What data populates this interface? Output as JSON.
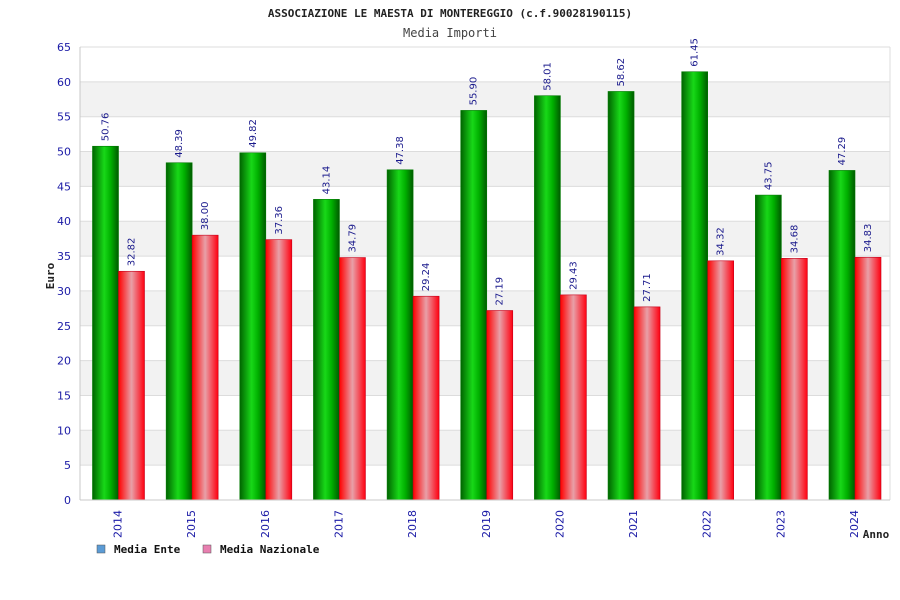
{
  "chart_data": {
    "type": "bar",
    "title": "ASSOCIAZIONE LE MAESTA DI MONTEREGGIO (c.f.90028190115)",
    "subtitle": "Media Importi",
    "xlabel": "Anno",
    "ylabel": "Euro",
    "ylim": [
      0,
      65
    ],
    "yticks": [
      0,
      5,
      10,
      15,
      20,
      25,
      30,
      35,
      40,
      45,
      50,
      55,
      60,
      65
    ],
    "categories": [
      "2014",
      "2015",
      "2016",
      "2017",
      "2018",
      "2019",
      "2020",
      "2021",
      "2022",
      "2023",
      "2024"
    ],
    "series": [
      {
        "name": "Media Ente",
        "color": "#00b400",
        "legend_color": "#5b9bd5",
        "values": [
          50.76,
          48.39,
          49.82,
          43.14,
          47.38,
          55.9,
          58.01,
          58.62,
          61.45,
          43.75,
          47.29
        ],
        "labels": [
          "50.76",
          "48.39",
          "49.82",
          "43.14",
          "47.38",
          "55.90",
          "58.01",
          "58.62",
          "61.45",
          "43.75",
          "47.29"
        ]
      },
      {
        "name": "Media Nazionale",
        "color": "#e8001c",
        "legend_color": "#e87fb0",
        "values": [
          32.82,
          38.0,
          37.36,
          34.79,
          29.24,
          27.19,
          29.43,
          27.71,
          34.32,
          34.68,
          34.83
        ],
        "labels": [
          "32.82",
          "38.00",
          "37.36",
          "34.79",
          "29.24",
          "27.19",
          "29.43",
          "27.71",
          "34.32",
          "34.68",
          "34.83"
        ]
      }
    ],
    "grid": true,
    "legend_position": "bottom-left"
  }
}
